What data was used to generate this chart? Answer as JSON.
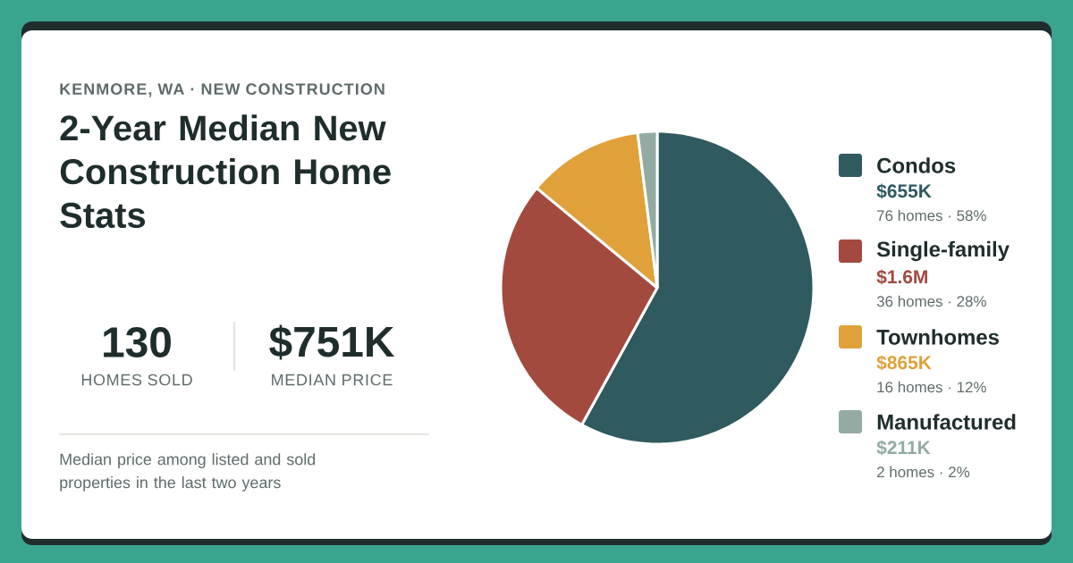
{
  "chart_data": {
    "type": "pie",
    "subtitle": "KENMORE, WA · NEW CONSTRUCTION",
    "title": "2-Year Median New Construction Home Stats",
    "categories": [
      "Condos",
      "Single-family",
      "Townhomes",
      "Manufactured"
    ],
    "values": [
      58,
      28,
      12,
      2
    ],
    "colors": [
      "#2f5a5f",
      "#a34a3f",
      "#e0a13a",
      "#93aba3"
    ],
    "legend": "right",
    "annotations": [
      "$655K",
      "$1.6M",
      "$865K",
      "$211K",
      "76 homes · 58%",
      "36 homes · 28%",
      "16 homes · 12%",
      "2 homes · 2%",
      "130",
      "HOMES SOLD",
      "$751K",
      "MEDIAN PRICE",
      "Median price among listed and sold properties in the last two years"
    ]
  }
}
